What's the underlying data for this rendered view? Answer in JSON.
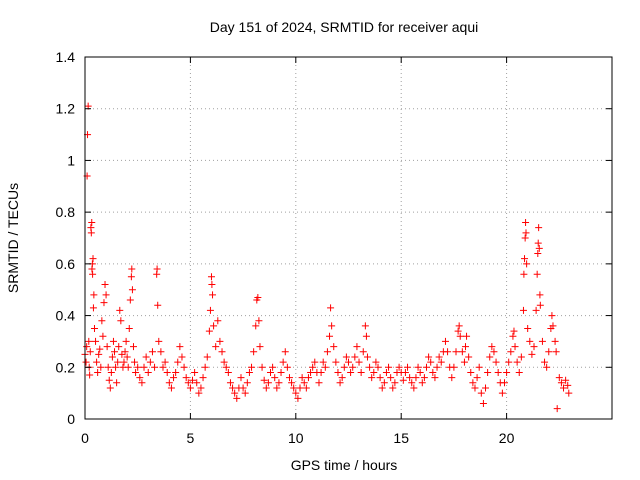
{
  "chart_data": {
    "type": "scatter",
    "title": "Day 151 of 2024, SRMTID for receiver aqui",
    "xlabel": "GPS time / hours",
    "ylabel": "SRMTID / TECUs",
    "xlim": [
      0,
      25
    ],
    "ylim": [
      0,
      1.4
    ],
    "xticks": [
      0,
      5,
      10,
      15,
      20
    ],
    "yticks": [
      0,
      0.2,
      0.4,
      0.6,
      0.8,
      1,
      1.2,
      1.4
    ],
    "xtick_labels": [
      "0",
      "5",
      "10",
      "15",
      "20"
    ],
    "ytick_labels": [
      "0",
      "0.2",
      "0.4",
      "0.6",
      "0.8",
      "1",
      "1.2",
      "1.4"
    ],
    "grid": true,
    "marker": "+",
    "color": "#ff0000",
    "series": [
      {
        "name": "SRMTID",
        "points": [
          [
            0.0,
            0.25
          ],
          [
            0.05,
            0.22
          ],
          [
            0.08,
            0.28
          ],
          [
            0.1,
            0.94
          ],
          [
            0.12,
            1.1
          ],
          [
            0.15,
            1.21
          ],
          [
            0.18,
            0.3
          ],
          [
            0.2,
            0.2
          ],
          [
            0.22,
            0.17
          ],
          [
            0.25,
            0.26
          ],
          [
            0.28,
            0.74
          ],
          [
            0.3,
            0.72
          ],
          [
            0.32,
            0.76
          ],
          [
            0.33,
            0.58
          ],
          [
            0.35,
            0.6
          ],
          [
            0.36,
            0.56
          ],
          [
            0.38,
            0.62
          ],
          [
            0.4,
            0.43
          ],
          [
            0.42,
            0.48
          ],
          [
            0.45,
            0.35
          ],
          [
            0.5,
            0.3
          ],
          [
            0.55,
            0.22
          ],
          [
            0.6,
            0.18
          ],
          [
            0.65,
            0.25
          ],
          [
            0.7,
            0.27
          ],
          [
            0.75,
            0.2
          ],
          [
            0.8,
            0.38
          ],
          [
            0.85,
            0.32
          ],
          [
            0.9,
            0.45
          ],
          [
            0.95,
            0.52
          ],
          [
            1.0,
            0.48
          ],
          [
            1.05,
            0.28
          ],
          [
            1.1,
            0.2
          ],
          [
            1.15,
            0.15
          ],
          [
            1.2,
            0.12
          ],
          [
            1.25,
            0.18
          ],
          [
            1.3,
            0.24
          ],
          [
            1.35,
            0.3
          ],
          [
            1.4,
            0.26
          ],
          [
            1.45,
            0.2
          ],
          [
            1.5,
            0.14
          ],
          [
            1.55,
            0.22
          ],
          [
            1.6,
            0.28
          ],
          [
            1.65,
            0.42
          ],
          [
            1.7,
            0.38
          ],
          [
            1.75,
            0.25
          ],
          [
            1.8,
            0.2
          ],
          [
            1.85,
            0.22
          ],
          [
            1.9,
            0.26
          ],
          [
            1.95,
            0.3
          ],
          [
            2.0,
            0.24
          ],
          [
            2.05,
            0.2
          ],
          [
            2.1,
            0.35
          ],
          [
            2.15,
            0.46
          ],
          [
            2.2,
            0.55
          ],
          [
            2.22,
            0.58
          ],
          [
            2.25,
            0.5
          ],
          [
            2.3,
            0.28
          ],
          [
            2.35,
            0.22
          ],
          [
            2.4,
            0.18
          ],
          [
            2.5,
            0.2
          ],
          [
            2.6,
            0.16
          ],
          [
            2.7,
            0.14
          ],
          [
            2.8,
            0.2
          ],
          [
            2.9,
            0.24
          ],
          [
            3.0,
            0.18
          ],
          [
            3.1,
            0.22
          ],
          [
            3.2,
            0.26
          ],
          [
            3.3,
            0.2
          ],
          [
            3.4,
            0.56
          ],
          [
            3.42,
            0.58
          ],
          [
            3.45,
            0.44
          ],
          [
            3.5,
            0.3
          ],
          [
            3.6,
            0.26
          ],
          [
            3.7,
            0.2
          ],
          [
            3.8,
            0.22
          ],
          [
            3.9,
            0.18
          ],
          [
            4.0,
            0.14
          ],
          [
            4.1,
            0.12
          ],
          [
            4.2,
            0.16
          ],
          [
            4.3,
            0.18
          ],
          [
            4.4,
            0.22
          ],
          [
            4.5,
            0.28
          ],
          [
            4.6,
            0.24
          ],
          [
            4.7,
            0.2
          ],
          [
            4.8,
            0.16
          ],
          [
            4.9,
            0.14
          ],
          [
            5.0,
            0.12
          ],
          [
            5.1,
            0.15
          ],
          [
            5.2,
            0.18
          ],
          [
            5.3,
            0.14
          ],
          [
            5.4,
            0.1
          ],
          [
            5.5,
            0.12
          ],
          [
            5.6,
            0.16
          ],
          [
            5.7,
            0.2
          ],
          [
            5.8,
            0.24
          ],
          [
            5.9,
            0.34
          ],
          [
            5.95,
            0.42
          ],
          [
            6.0,
            0.55
          ],
          [
            6.02,
            0.52
          ],
          [
            6.05,
            0.48
          ],
          [
            6.1,
            0.36
          ],
          [
            6.2,
            0.28
          ],
          [
            6.3,
            0.38
          ],
          [
            6.4,
            0.3
          ],
          [
            6.5,
            0.26
          ],
          [
            6.6,
            0.22
          ],
          [
            6.7,
            0.2
          ],
          [
            6.8,
            0.18
          ],
          [
            6.9,
            0.14
          ],
          [
            7.0,
            0.12
          ],
          [
            7.1,
            0.1
          ],
          [
            7.2,
            0.08
          ],
          [
            7.3,
            0.12
          ],
          [
            7.4,
            0.16
          ],
          [
            7.5,
            0.12
          ],
          [
            7.6,
            0.1
          ],
          [
            7.7,
            0.14
          ],
          [
            7.8,
            0.18
          ],
          [
            7.9,
            0.2
          ],
          [
            8.0,
            0.26
          ],
          [
            8.1,
            0.36
          ],
          [
            8.15,
            0.46
          ],
          [
            8.2,
            0.47
          ],
          [
            8.25,
            0.38
          ],
          [
            8.3,
            0.28
          ],
          [
            8.4,
            0.2
          ],
          [
            8.5,
            0.15
          ],
          [
            8.6,
            0.12
          ],
          [
            8.7,
            0.14
          ],
          [
            8.8,
            0.18
          ],
          [
            8.9,
            0.2
          ],
          [
            9.0,
            0.16
          ],
          [
            9.1,
            0.12
          ],
          [
            9.2,
            0.14
          ],
          [
            9.3,
            0.18
          ],
          [
            9.4,
            0.22
          ],
          [
            9.5,
            0.26
          ],
          [
            9.6,
            0.2
          ],
          [
            9.7,
            0.16
          ],
          [
            9.8,
            0.14
          ],
          [
            9.9,
            0.12
          ],
          [
            10.0,
            0.1
          ],
          [
            10.1,
            0.08
          ],
          [
            10.2,
            0.12
          ],
          [
            10.3,
            0.16
          ],
          [
            10.4,
            0.14
          ],
          [
            10.5,
            0.12
          ],
          [
            10.6,
            0.16
          ],
          [
            10.7,
            0.18
          ],
          [
            10.8,
            0.2
          ],
          [
            10.9,
            0.22
          ],
          [
            11.0,
            0.18
          ],
          [
            11.1,
            0.14
          ],
          [
            11.2,
            0.18
          ],
          [
            11.3,
            0.22
          ],
          [
            11.4,
            0.2
          ],
          [
            11.5,
            0.26
          ],
          [
            11.6,
            0.32
          ],
          [
            11.65,
            0.43
          ],
          [
            11.7,
            0.36
          ],
          [
            11.8,
            0.28
          ],
          [
            11.9,
            0.22
          ],
          [
            12.0,
            0.18
          ],
          [
            12.1,
            0.14
          ],
          [
            12.2,
            0.16
          ],
          [
            12.3,
            0.2
          ],
          [
            12.4,
            0.24
          ],
          [
            12.5,
            0.22
          ],
          [
            12.6,
            0.18
          ],
          [
            12.7,
            0.2
          ],
          [
            12.8,
            0.24
          ],
          [
            12.9,
            0.28
          ],
          [
            13.0,
            0.22
          ],
          [
            13.1,
            0.18
          ],
          [
            13.2,
            0.26
          ],
          [
            13.3,
            0.36
          ],
          [
            13.35,
            0.32
          ],
          [
            13.4,
            0.24
          ],
          [
            13.5,
            0.2
          ],
          [
            13.6,
            0.16
          ],
          [
            13.7,
            0.18
          ],
          [
            13.8,
            0.22
          ],
          [
            13.9,
            0.2
          ],
          [
            14.0,
            0.16
          ],
          [
            14.1,
            0.12
          ],
          [
            14.2,
            0.14
          ],
          [
            14.3,
            0.18
          ],
          [
            14.4,
            0.2
          ],
          [
            14.5,
            0.16
          ],
          [
            14.6,
            0.12
          ],
          [
            14.7,
            0.14
          ],
          [
            14.8,
            0.18
          ],
          [
            14.9,
            0.2
          ],
          [
            15.0,
            0.18
          ],
          [
            15.1,
            0.15
          ],
          [
            15.2,
            0.18
          ],
          [
            15.3,
            0.2
          ],
          [
            15.4,
            0.16
          ],
          [
            15.5,
            0.14
          ],
          [
            15.6,
            0.12
          ],
          [
            15.7,
            0.16
          ],
          [
            15.8,
            0.2
          ],
          [
            15.9,
            0.18
          ],
          [
            16.0,
            0.14
          ],
          [
            16.1,
            0.16
          ],
          [
            16.2,
            0.2
          ],
          [
            16.3,
            0.24
          ],
          [
            16.4,
            0.22
          ],
          [
            16.5,
            0.18
          ],
          [
            16.6,
            0.16
          ],
          [
            16.7,
            0.2
          ],
          [
            16.8,
            0.24
          ],
          [
            16.9,
            0.22
          ],
          [
            17.0,
            0.26
          ],
          [
            17.1,
            0.3
          ],
          [
            17.2,
            0.26
          ],
          [
            17.3,
            0.2
          ],
          [
            17.4,
            0.16
          ],
          [
            17.5,
            0.2
          ],
          [
            17.6,
            0.26
          ],
          [
            17.7,
            0.34
          ],
          [
            17.75,
            0.36
          ],
          [
            17.8,
            0.32
          ],
          [
            17.9,
            0.26
          ],
          [
            18.0,
            0.22
          ],
          [
            18.05,
            0.28
          ],
          [
            18.1,
            0.32
          ],
          [
            18.2,
            0.24
          ],
          [
            18.3,
            0.18
          ],
          [
            18.4,
            0.14
          ],
          [
            18.5,
            0.12
          ],
          [
            18.6,
            0.16
          ],
          [
            18.7,
            0.2
          ],
          [
            18.8,
            0.1
          ],
          [
            18.9,
            0.06
          ],
          [
            19.0,
            0.12
          ],
          [
            19.1,
            0.18
          ],
          [
            19.2,
            0.24
          ],
          [
            19.3,
            0.28
          ],
          [
            19.4,
            0.26
          ],
          [
            19.5,
            0.22
          ],
          [
            19.6,
            0.18
          ],
          [
            19.7,
            0.14
          ],
          [
            19.8,
            0.1
          ],
          [
            19.9,
            0.14
          ],
          [
            20.0,
            0.18
          ],
          [
            20.1,
            0.22
          ],
          [
            20.2,
            0.26
          ],
          [
            20.3,
            0.32
          ],
          [
            20.35,
            0.34
          ],
          [
            20.4,
            0.28
          ],
          [
            20.5,
            0.22
          ],
          [
            20.6,
            0.18
          ],
          [
            20.7,
            0.24
          ],
          [
            20.8,
            0.42
          ],
          [
            20.82,
            0.56
          ],
          [
            20.85,
            0.62
          ],
          [
            20.88,
            0.7
          ],
          [
            20.9,
            0.76
          ],
          [
            20.92,
            0.72
          ],
          [
            20.95,
            0.6
          ],
          [
            21.0,
            0.35
          ],
          [
            21.1,
            0.3
          ],
          [
            21.2,
            0.25
          ],
          [
            21.3,
            0.28
          ],
          [
            21.4,
            0.42
          ],
          [
            21.45,
            0.56
          ],
          [
            21.48,
            0.64
          ],
          [
            21.5,
            0.68
          ],
          [
            21.52,
            0.74
          ],
          [
            21.55,
            0.66
          ],
          [
            21.58,
            0.48
          ],
          [
            21.6,
            0.44
          ],
          [
            21.7,
            0.3
          ],
          [
            21.8,
            0.22
          ],
          [
            21.9,
            0.2
          ],
          [
            22.0,
            0.26
          ],
          [
            22.1,
            0.35
          ],
          [
            22.15,
            0.4
          ],
          [
            22.2,
            0.36
          ],
          [
            22.3,
            0.3
          ],
          [
            22.35,
            0.26
          ],
          [
            22.4,
            0.04
          ],
          [
            22.5,
            0.16
          ],
          [
            22.6,
            0.14
          ],
          [
            22.7,
            0.12
          ],
          [
            22.8,
            0.15
          ],
          [
            22.9,
            0.13
          ],
          [
            22.95,
            0.1
          ]
        ]
      }
    ]
  }
}
